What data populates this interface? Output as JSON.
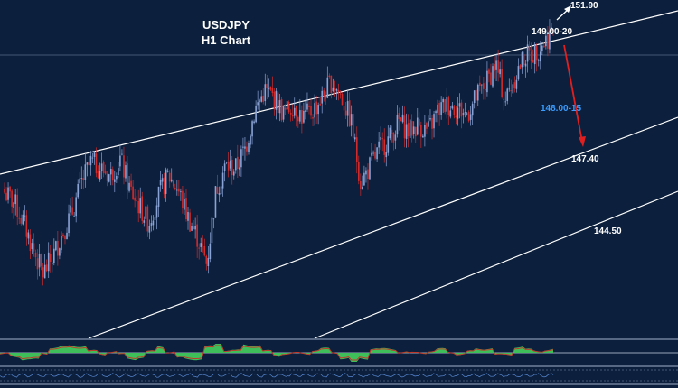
{
  "chart_data": {
    "type": "candlestick",
    "title": "USDJPY",
    "subtitle": "H1 Chart",
    "colors": {
      "background": "#0c1f3c",
      "bull_candle": "#8aa3d6",
      "bear_candle": "#d42a2a",
      "channel_lines": "#ffffff",
      "bearish_arrow": "#e02020",
      "target_label": "#3b9cff",
      "oscillator_positive": "#3fbf5a",
      "oscillator_negative": "#3fbf5a",
      "oscillator_signal": "#c0392b"
    },
    "price_levels": [
      {
        "label": "151.90",
        "role": "upper target"
      },
      {
        "label": "149.00-20",
        "role": "current resistance"
      },
      {
        "label": "148.00-15",
        "role": "intermediate target"
      },
      {
        "label": "147.40",
        "role": "channel support"
      },
      {
        "label": "144.50",
        "role": "lower channel"
      }
    ],
    "price_closes": [
      146.5,
      146.2,
      145.6,
      144.8,
      144.1,
      144.6,
      145.3,
      145.9,
      146.8,
      147.4,
      147.2,
      147.0,
      147.5,
      146.6,
      146.1,
      145.6,
      146.4,
      147.0,
      146.6,
      145.8,
      145.2,
      144.4,
      146.6,
      147.3,
      147.2,
      147.8,
      148.9,
      149.5,
      149.3,
      148.8,
      149.1,
      148.7,
      148.9,
      149.3,
      149.8,
      149.3,
      148.6,
      146.8,
      147.3,
      147.8,
      148.1,
      148.6,
      148.3,
      148.5,
      148.3,
      148.9,
      149.1,
      149.0,
      148.8,
      149.3,
      149.7,
      150.3,
      149.2,
      149.9,
      150.5,
      150.6,
      150.9,
      151.3
    ]
  }
}
